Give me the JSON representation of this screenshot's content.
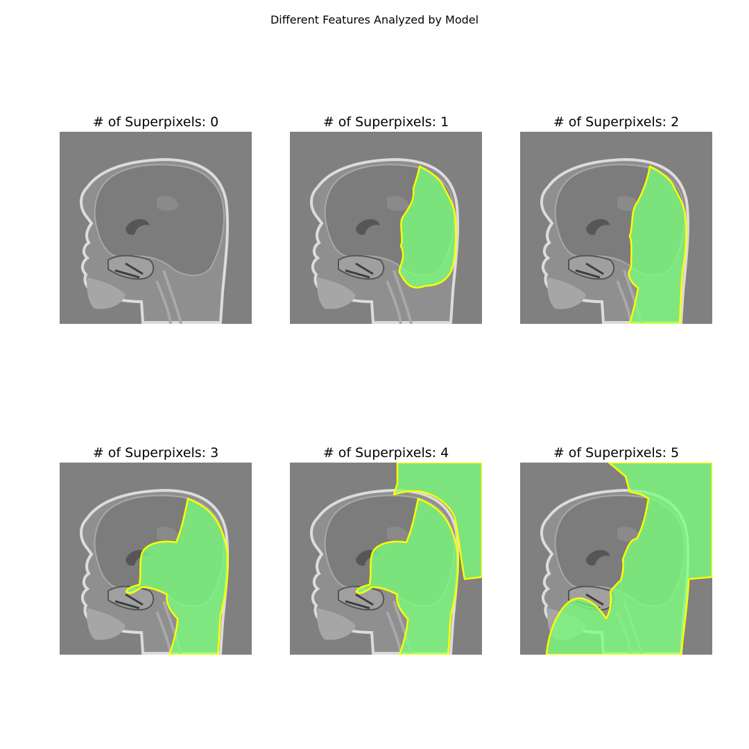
{
  "figure": {
    "title": "Different Features Analyzed by Model"
  },
  "panels": [
    {
      "title": "# of Superpixels: 0",
      "superpixels": 0
    },
    {
      "title": "# of Superpixels: 1",
      "superpixels": 1
    },
    {
      "title": "# of Superpixels: 2",
      "superpixels": 2
    },
    {
      "title": "# of Superpixels: 3",
      "superpixels": 3
    },
    {
      "title": "# of Superpixels: 4",
      "superpixels": 4
    },
    {
      "title": "# of Superpixels: 5",
      "superpixels": 5
    }
  ],
  "colors": {
    "background": "#808080",
    "highlight": "#7cff7c",
    "boundary": "#ffff00"
  }
}
